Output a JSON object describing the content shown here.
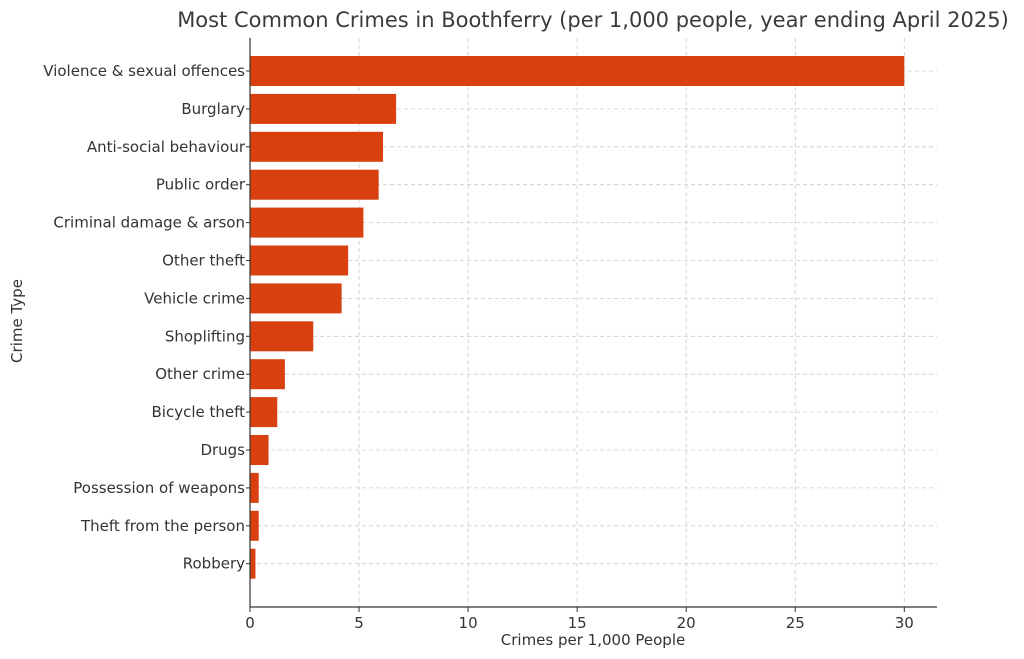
{
  "chart_data": {
    "type": "bar",
    "orientation": "horizontal",
    "title": "Most Common Crimes in Boothferry (per 1,000 people, year ending April 2025)",
    "xlabel": "Crimes per 1,000 People",
    "ylabel": "Crime Type",
    "categories": [
      "Violence & sexual offences",
      "Burglary",
      "Anti-social behaviour",
      "Public order",
      "Criminal damage & arson",
      "Other theft",
      "Vehicle crime",
      "Shoplifting",
      "Other crime",
      "Bicycle theft",
      "Drugs",
      "Possession of weapons",
      "Theft from the person",
      "Robbery"
    ],
    "values": [
      30.0,
      6.7,
      6.1,
      5.9,
      5.2,
      4.5,
      4.2,
      2.9,
      1.6,
      1.25,
      0.85,
      0.4,
      0.4,
      0.25
    ],
    "xlim": [
      0,
      31.5
    ],
    "xticks": [
      0,
      5,
      10,
      15,
      20,
      25,
      30
    ],
    "bar_color": "#d9400f",
    "grid": true,
    "legend": "none"
  }
}
